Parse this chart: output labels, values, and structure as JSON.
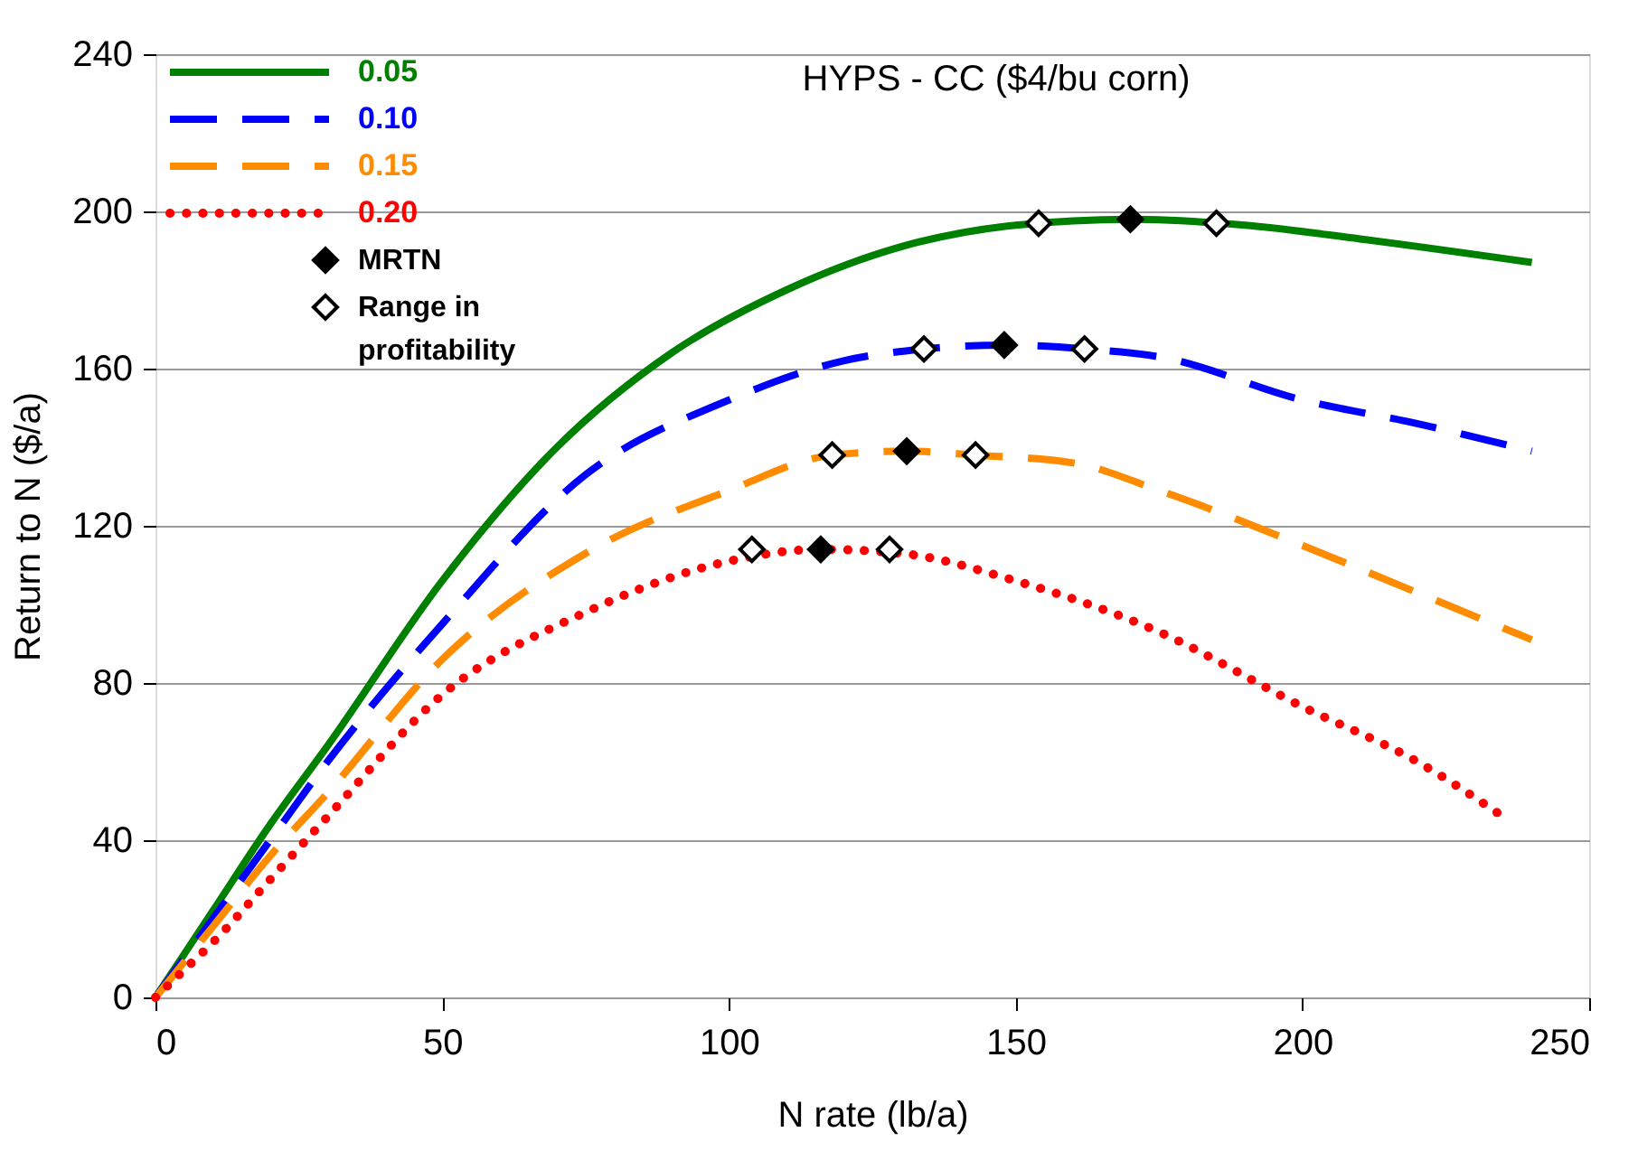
{
  "chart_data": {
    "type": "line",
    "title": "HYPS - CC ($4/bu corn)",
    "xlabel": "N rate (lb/a)",
    "ylabel": "Return to N ($/a)",
    "xlim": [
      0,
      250
    ],
    "xticks": [
      0,
      50,
      100,
      150,
      200,
      250
    ],
    "ylim": [
      0,
      240
    ],
    "yticks": [
      0,
      40,
      80,
      120,
      160,
      200,
      240
    ],
    "grid": "y",
    "legend": "top left",
    "series": [
      {
        "name": "0.05",
        "color": "#008000",
        "line_style": "solid",
        "x": [
          0,
          10,
          20,
          30,
          50,
          70,
          90,
          110,
          130,
          150,
          170,
          190,
          210,
          240
        ],
        "values": [
          0,
          22,
          44,
          64,
          106,
          140,
          164,
          180,
          191,
          196.5,
          198,
          196.5,
          193,
          187
        ]
      },
      {
        "name": "0.10",
        "color": "#0000ff",
        "line_style": "dashed",
        "x": [
          0,
          10,
          20,
          30,
          50,
          75,
          100,
          120,
          134,
          148,
          162,
          175,
          200,
          220,
          240
        ],
        "values": [
          0,
          20,
          40,
          60,
          95,
          133,
          152,
          162,
          165,
          166,
          165,
          163,
          152,
          146,
          139
        ]
      },
      {
        "name": "0.15",
        "color": "#ff8c00",
        "line_style": "dashed",
        "x": [
          0,
          10,
          20,
          30,
          50,
          75,
          100,
          118,
          131,
          143,
          160,
          175,
          200,
          220,
          240
        ],
        "values": [
          0,
          18,
          36,
          52,
          86,
          113,
          129,
          138,
          139,
          138,
          136,
          129,
          115,
          103,
          91
        ]
      },
      {
        "name": "0.20",
        "color": "#ff0000",
        "line_style": "dotted",
        "x": [
          0,
          5,
          10,
          20,
          30,
          50,
          75,
          100,
          116,
          130,
          150,
          175,
          200,
          220,
          236
        ],
        "values": [
          0,
          7,
          14,
          30,
          46,
          77,
          98,
          111,
          114,
          113,
          106,
          93,
          74,
          60,
          45
        ]
      },
      {
        "name": "MRTN",
        "type": "scatter",
        "marker": "diamond",
        "color": "#000000",
        "x": [
          170,
          148,
          131,
          116
        ],
        "values": [
          198,
          166,
          139,
          114
        ]
      },
      {
        "name": "Range in profitability",
        "type": "scatter",
        "marker": "diamond",
        "color": "#ffffff",
        "x": [
          154,
          185,
          134,
          162,
          118,
          143,
          104,
          128
        ],
        "values": [
          197,
          197,
          165,
          165,
          138,
          138,
          114,
          114
        ]
      }
    ]
  }
}
